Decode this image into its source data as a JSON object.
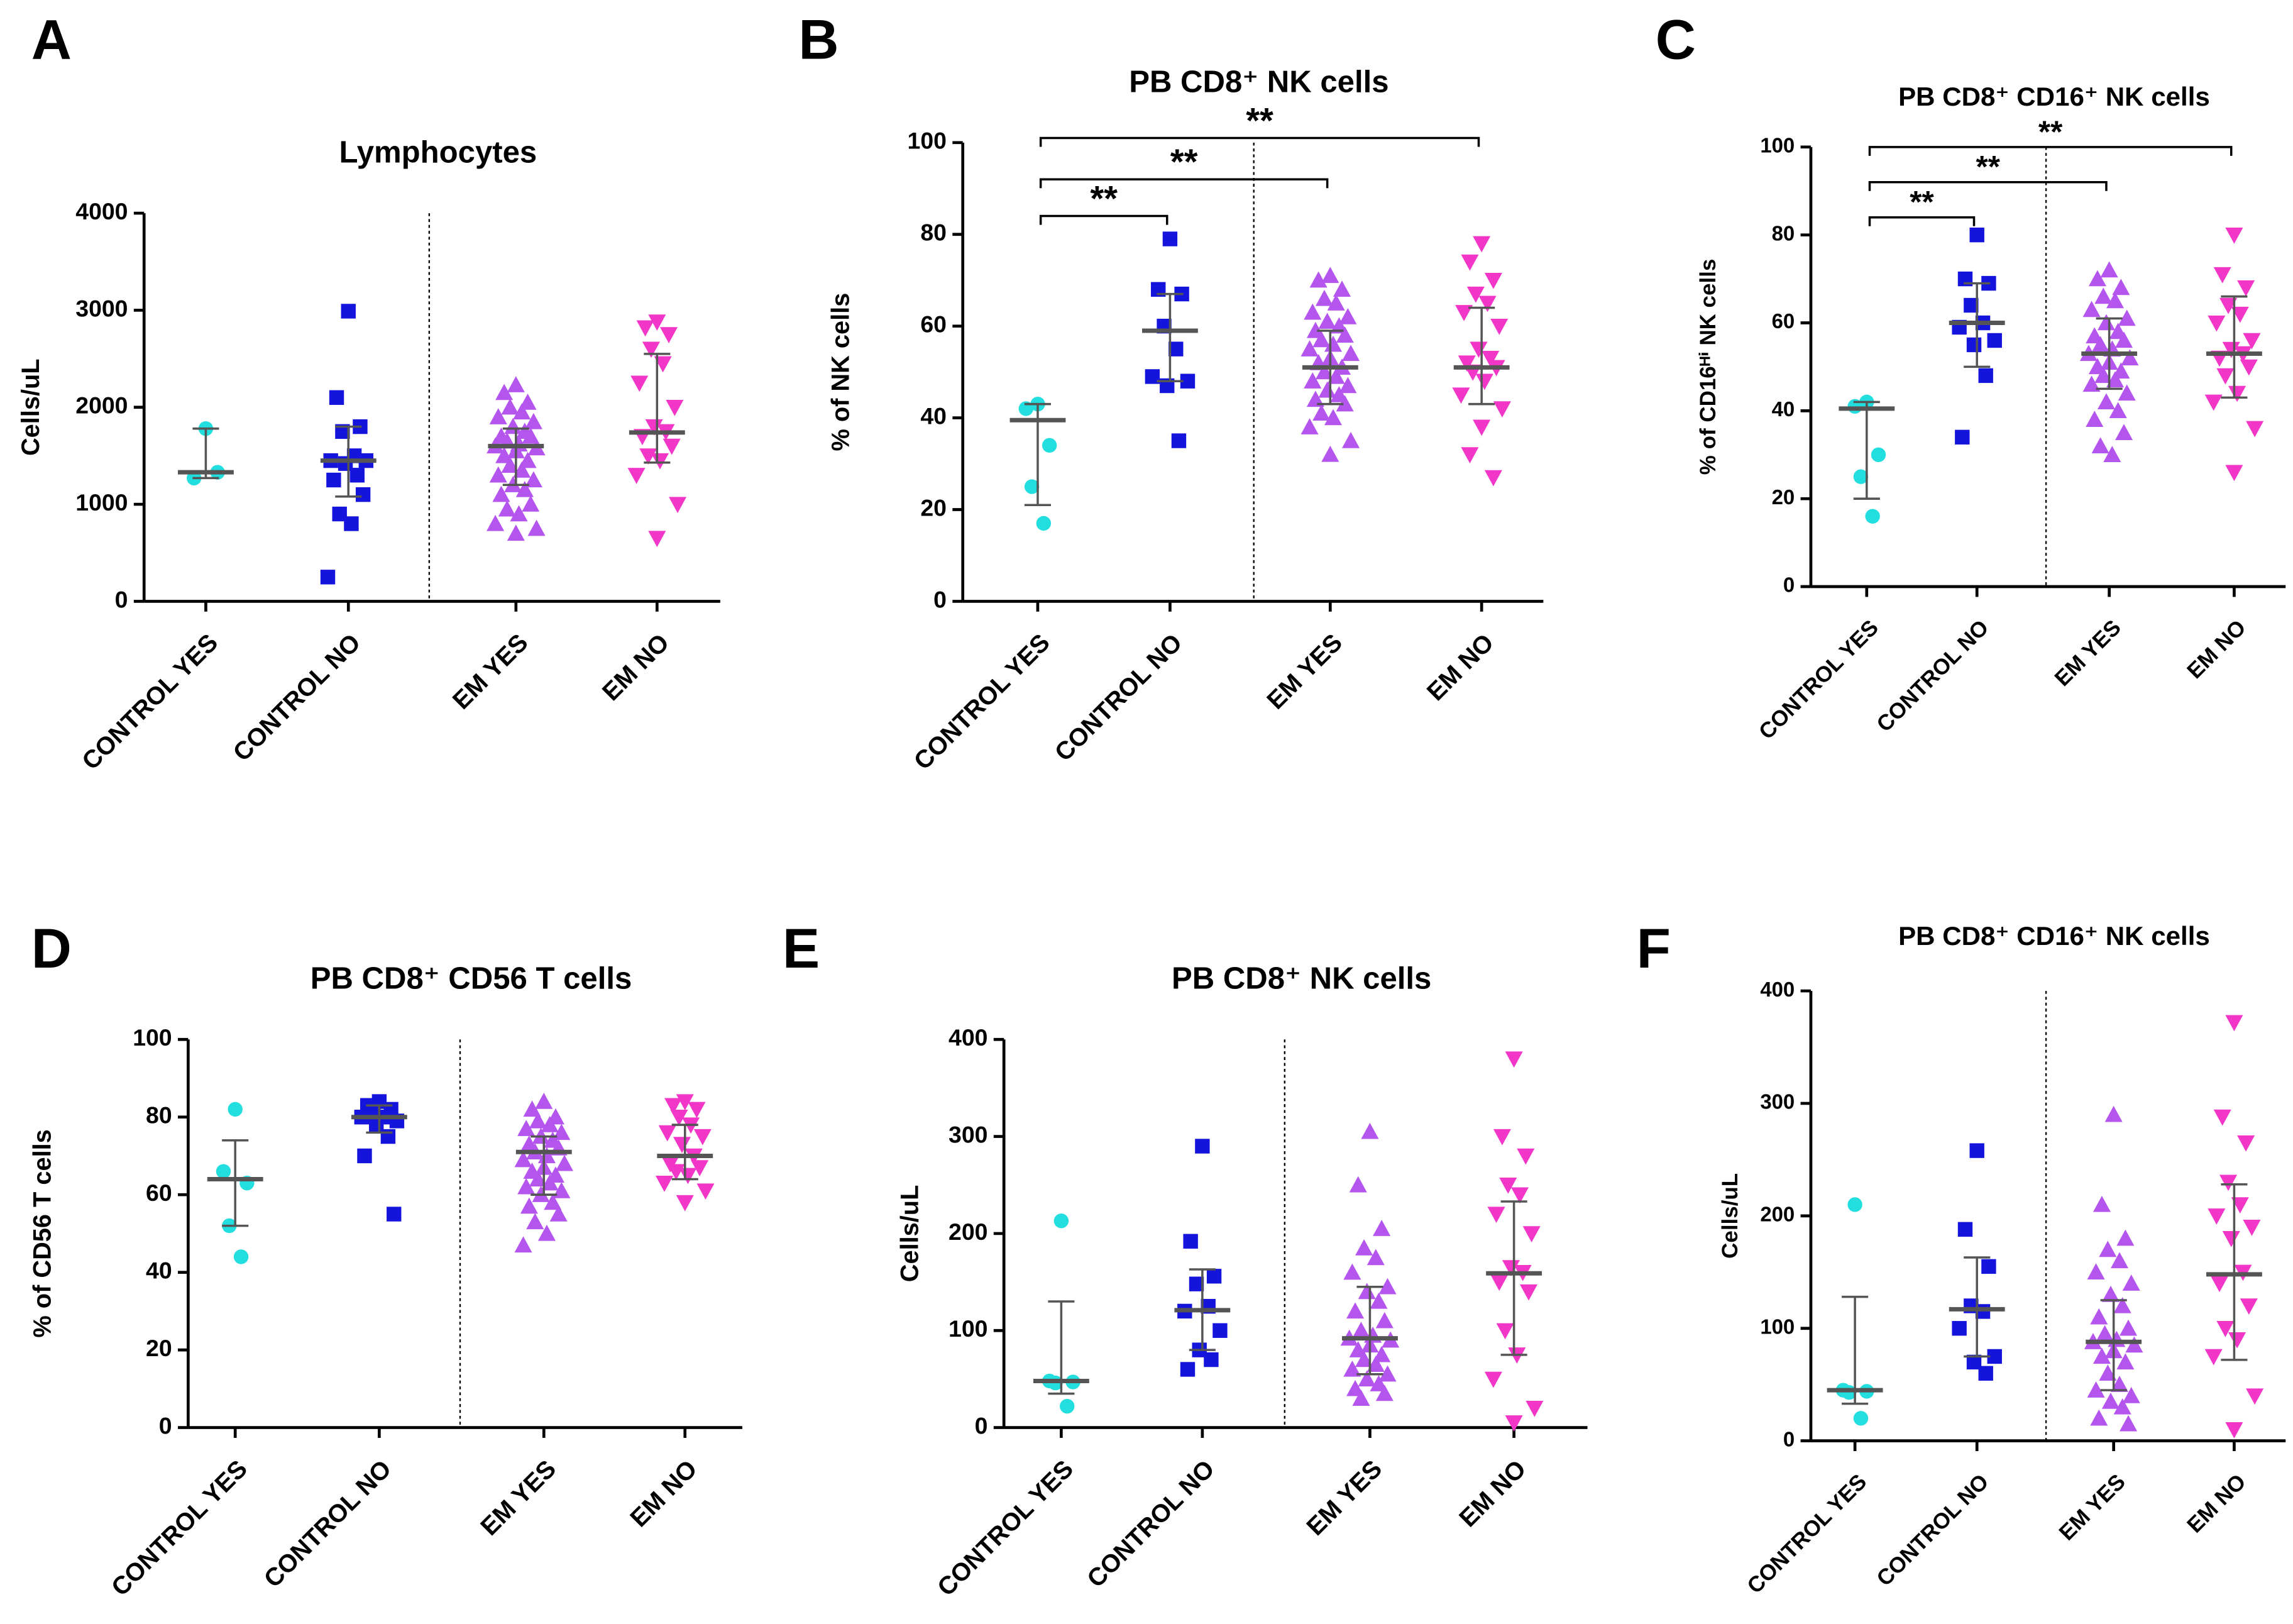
{
  "chart_data": [
    {
      "type": "dot",
      "panel": "A",
      "title": "Lymphocytes",
      "ylabel": "Cells/uL",
      "categories": [
        "CONTROL YES",
        "CONTROL NO",
        "EM YES",
        "EM NO"
      ],
      "colors": [
        "#22dede",
        "#1414dc",
        "#b455ee",
        "#f236c8"
      ],
      "markers": [
        "circle",
        "square",
        "triangle",
        "triangle-down"
      ],
      "values": [
        [
          1780,
          1270,
          1330
        ],
        [
          2990,
          2100,
          1800,
          1750,
          1500,
          1450,
          1450,
          1420,
          1300,
          1250,
          1100,
          900,
          800,
          250
        ],
        [
          2230,
          2150,
          2050,
          2000,
          1950,
          1900,
          1850,
          1800,
          1750,
          1700,
          1700,
          1650,
          1620,
          1600,
          1580,
          1550,
          1500,
          1450,
          1400,
          1350,
          1300,
          1250,
          1200,
          1150,
          1100,
          1000,
          950,
          900,
          800,
          750,
          700
        ],
        [
          2880,
          2820,
          2750,
          2600,
          2450,
          2250,
          2000,
          1800,
          1750,
          1700,
          1600,
          1500,
          1450,
          1300,
          1000,
          650
        ]
      ],
      "medians": [
        1330,
        1450,
        1600,
        1740
      ],
      "lower": [
        1270,
        1080,
        1200,
        1430
      ],
      "upper": [
        1780,
        1800,
        1780,
        2550
      ],
      "ylim": [
        0,
        4000
      ],
      "yticks": [
        0,
        1000,
        2000,
        3000,
        4000
      ],
      "annotations": []
    },
    {
      "type": "dot",
      "panel": "B",
      "title": "PB CD8⁺ NK cells",
      "ylabel": "% of NK cells",
      "categories": [
        "CONTROL YES",
        "CONTROL NO",
        "EM YES",
        "EM NO"
      ],
      "colors": [
        "#22dede",
        "#1414dc",
        "#b455ee",
        "#f236c8"
      ],
      "markers": [
        "circle",
        "square",
        "triangle",
        "triangle-down"
      ],
      "values": [
        [
          43,
          42,
          34,
          25,
          17
        ],
        [
          79,
          68,
          67,
          60,
          55,
          49,
          48,
          47,
          35
        ],
        [
          71,
          70,
          68,
          66,
          65,
          63,
          62,
          61,
          60,
          59,
          58,
          57,
          56,
          55,
          54,
          53,
          52,
          51,
          50,
          49,
          48,
          47,
          46,
          45,
          44,
          43,
          41,
          40,
          38,
          35,
          32
        ],
        [
          78,
          74,
          70,
          67,
          65,
          63,
          60,
          55,
          53,
          52,
          51,
          50,
          48,
          45,
          42,
          38,
          32,
          27
        ]
      ],
      "medians": [
        39.5,
        59,
        51,
        51
      ],
      "lower": [
        21,
        48,
        43,
        43
      ],
      "upper": [
        43,
        67,
        59,
        64
      ],
      "ylim": [
        0,
        100
      ],
      "yticks": [
        0,
        20,
        40,
        60,
        80,
        100
      ],
      "annotations": [
        {
          "label": "**",
          "from": 0,
          "to": 1,
          "y": 84
        },
        {
          "label": "**",
          "from": 0,
          "to": 2,
          "y": 92
        },
        {
          "label": "**",
          "from": 0,
          "to": 3,
          "y": 101
        }
      ]
    },
    {
      "type": "dot",
      "panel": "C",
      "title": "PB CD8⁺ CD16⁺ NK cells",
      "ylabel": "% of CD16ᴴⁱ NK cells",
      "categories": [
        "CONTROL YES",
        "CONTROL NO",
        "EM YES",
        "EM NO"
      ],
      "colors": [
        "#22dede",
        "#1414dc",
        "#b455ee",
        "#f236c8"
      ],
      "markers": [
        "circle",
        "square",
        "triangle",
        "triangle-down"
      ],
      "values": [
        [
          42,
          41,
          30,
          25,
          16
        ],
        [
          80,
          70,
          69,
          64,
          60,
          59,
          56,
          55,
          48,
          34
        ],
        [
          72,
          70,
          68,
          66,
          65,
          63,
          61,
          60,
          58,
          57,
          56,
          55,
          54,
          53,
          52,
          51,
          50,
          49,
          48,
          47,
          46,
          44,
          42,
          40,
          38,
          35,
          32,
          30
        ],
        [
          80,
          71,
          68,
          64,
          62,
          60,
          56,
          54,
          53,
          52,
          50,
          48,
          44,
          42,
          36,
          26
        ]
      ],
      "medians": [
        40.5,
        60,
        53,
        53
      ],
      "lower": [
        20,
        50,
        45,
        43
      ],
      "upper": [
        42,
        69,
        61,
        66
      ],
      "ylim": [
        0,
        100
      ],
      "yticks": [
        0,
        20,
        40,
        60,
        80,
        100
      ],
      "annotations": [
        {
          "label": "**",
          "from": 0,
          "to": 1,
          "y": 84
        },
        {
          "label": "**",
          "from": 0,
          "to": 2,
          "y": 92
        },
        {
          "label": "**",
          "from": 0,
          "to": 3,
          "y": 100
        }
      ]
    },
    {
      "type": "dot",
      "panel": "D",
      "title": "PB CD8⁺ CD56 T cells",
      "ylabel": "% of CD56 T cells",
      "categories": [
        "CONTROL YES",
        "CONTROL NO",
        "EM YES",
        "EM NO"
      ],
      "colors": [
        "#22dede",
        "#1414dc",
        "#b455ee",
        "#f236c8"
      ],
      "markers": [
        "circle",
        "square",
        "triangle",
        "triangle-down"
      ],
      "values": [
        [
          82,
          66,
          63,
          52,
          44
        ],
        [
          84,
          83,
          82,
          81,
          80,
          80,
          79,
          78,
          75,
          70,
          55
        ],
        [
          84,
          82,
          80,
          79,
          78,
          77,
          76,
          75,
          74,
          73,
          72,
          71,
          70,
          69,
          68,
          67,
          66,
          65,
          64,
          63,
          62,
          61,
          60,
          58,
          57,
          55,
          53,
          50,
          47
        ],
        [
          84,
          83,
          82,
          80,
          78,
          76,
          75,
          73,
          70,
          68,
          67,
          66,
          65,
          63,
          61,
          58
        ]
      ],
      "medians": [
        64,
        80,
        71,
        70
      ],
      "lower": [
        52,
        76,
        60,
        64
      ],
      "upper": [
        74,
        83,
        75,
        78
      ],
      "ylim": [
        0,
        100
      ],
      "yticks": [
        0,
        20,
        40,
        60,
        80,
        100
      ],
      "annotations": []
    },
    {
      "type": "dot",
      "panel": "E",
      "title": "PB CD8⁺ NK cells",
      "ylabel": "Cells/uL",
      "categories": [
        "CONTROL YES",
        "CONTROL NO",
        "EM YES",
        "EM NO"
      ],
      "colors": [
        "#22dede",
        "#1414dc",
        "#b455ee",
        "#f236c8"
      ],
      "markers": [
        "circle",
        "square",
        "triangle",
        "triangle-down"
      ],
      "values": [
        [
          213,
          48,
          47,
          46,
          22
        ],
        [
          290,
          192,
          156,
          148,
          125,
          120,
          100,
          80,
          70,
          60
        ],
        [
          305,
          250,
          205,
          185,
          175,
          160,
          145,
          140,
          130,
          120,
          110,
          100,
          95,
          92,
          90,
          85,
          80,
          75,
          70,
          65,
          60,
          55,
          50,
          45,
          40,
          35,
          30
        ],
        [
          380,
          300,
          280,
          250,
          240,
          220,
          200,
          165,
          160,
          150,
          140,
          100,
          75,
          50,
          20,
          5
        ]
      ],
      "medians": [
        48,
        121,
        92,
        159
      ],
      "lower": [
        35,
        80,
        55,
        75
      ],
      "upper": [
        130,
        163,
        145,
        233
      ],
      "ylim": [
        0,
        400
      ],
      "yticks": [
        0,
        100,
        200,
        300,
        400
      ],
      "annotations": []
    },
    {
      "type": "dot",
      "panel": "F",
      "title": "PB CD8⁺ CD16⁺ NK cells",
      "ylabel": "Cells/uL",
      "categories": [
        "CONTROL YES",
        "CONTROL NO",
        "EM YES",
        "EM NO"
      ],
      "colors": [
        "#22dede",
        "#1414dc",
        "#b455ee",
        "#f236c8"
      ],
      "markers": [
        "circle",
        "square",
        "triangle",
        "triangle-down"
      ],
      "values": [
        [
          210,
          45,
          44,
          43,
          20
        ],
        [
          258,
          188,
          155,
          120,
          115,
          100,
          75,
          70,
          60
        ],
        [
          290,
          210,
          180,
          170,
          160,
          150,
          140,
          130,
          120,
          110,
          100,
          95,
          90,
          88,
          85,
          80,
          75,
          70,
          60,
          50,
          45,
          40,
          35,
          30,
          20,
          15
        ],
        [
          372,
          288,
          265,
          230,
          210,
          200,
          190,
          180,
          150,
          140,
          120,
          100,
          90,
          75,
          40,
          10
        ]
      ],
      "medians": [
        45,
        117,
        88,
        148
      ],
      "lower": [
        33,
        75,
        45,
        72
      ],
      "upper": [
        128,
        163,
        125,
        228
      ],
      "ylim": [
        0,
        400
      ],
      "yticks": [
        0,
        100,
        200,
        300,
        400
      ],
      "annotations": []
    }
  ]
}
